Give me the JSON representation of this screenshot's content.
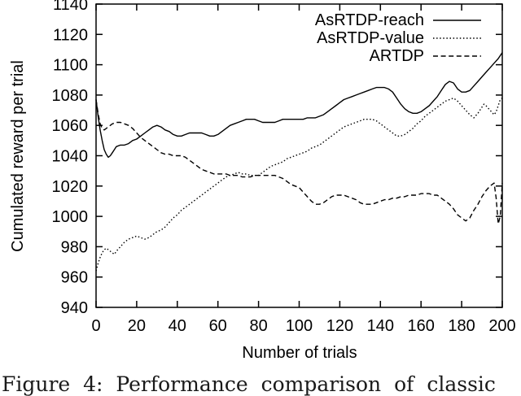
{
  "figure": {
    "caption_partial": "Figure 4: Performance comparison of classic"
  },
  "chart_data": {
    "type": "line",
    "title": "",
    "xlabel": "Number of trials",
    "ylabel": "Cumulated reward per trial",
    "xlim": [
      0,
      200
    ],
    "ylim": [
      940,
      1140
    ],
    "x_ticks": [
      0,
      20,
      40,
      60,
      80,
      100,
      120,
      140,
      160,
      180,
      200
    ],
    "y_ticks": [
      940,
      960,
      980,
      1000,
      1020,
      1040,
      1060,
      1080,
      1100,
      1120,
      1140
    ],
    "grid": false,
    "legend_position": "top-right-inside",
    "line_color": "#000000",
    "series": [
      {
        "name": "AsRTDP-reach",
        "style": "solid",
        "color": "#000000",
        "points": [
          [
            0,
            1077
          ],
          [
            1,
            1066
          ],
          [
            2,
            1057
          ],
          [
            3,
            1050
          ],
          [
            4,
            1044
          ],
          [
            5,
            1041
          ],
          [
            6,
            1039
          ],
          [
            7,
            1040
          ],
          [
            8,
            1042
          ],
          [
            9,
            1044
          ],
          [
            10,
            1046
          ],
          [
            12,
            1047
          ],
          [
            14,
            1047
          ],
          [
            16,
            1048
          ],
          [
            18,
            1050
          ],
          [
            20,
            1051
          ],
          [
            22,
            1053
          ],
          [
            24,
            1055
          ],
          [
            26,
            1057
          ],
          [
            28,
            1059
          ],
          [
            30,
            1060
          ],
          [
            32,
            1059
          ],
          [
            34,
            1057
          ],
          [
            36,
            1056
          ],
          [
            38,
            1054
          ],
          [
            40,
            1053
          ],
          [
            42,
            1053
          ],
          [
            44,
            1054
          ],
          [
            46,
            1055
          ],
          [
            48,
            1055
          ],
          [
            50,
            1055
          ],
          [
            52,
            1055
          ],
          [
            54,
            1054
          ],
          [
            56,
            1053
          ],
          [
            58,
            1053
          ],
          [
            60,
            1054
          ],
          [
            62,
            1056
          ],
          [
            64,
            1058
          ],
          [
            66,
            1060
          ],
          [
            68,
            1061
          ],
          [
            70,
            1062
          ],
          [
            72,
            1063
          ],
          [
            74,
            1064
          ],
          [
            76,
            1064
          ],
          [
            78,
            1064
          ],
          [
            80,
            1063
          ],
          [
            82,
            1062
          ],
          [
            84,
            1062
          ],
          [
            86,
            1062
          ],
          [
            88,
            1062
          ],
          [
            90,
            1063
          ],
          [
            92,
            1064
          ],
          [
            94,
            1064
          ],
          [
            96,
            1064
          ],
          [
            98,
            1064
          ],
          [
            100,
            1064
          ],
          [
            102,
            1064
          ],
          [
            104,
            1065
          ],
          [
            106,
            1065
          ],
          [
            108,
            1065
          ],
          [
            110,
            1066
          ],
          [
            112,
            1067
          ],
          [
            114,
            1069
          ],
          [
            116,
            1071
          ],
          [
            118,
            1073
          ],
          [
            120,
            1075
          ],
          [
            122,
            1077
          ],
          [
            124,
            1078
          ],
          [
            126,
            1079
          ],
          [
            128,
            1080
          ],
          [
            130,
            1081
          ],
          [
            132,
            1082
          ],
          [
            134,
            1083
          ],
          [
            136,
            1084
          ],
          [
            138,
            1085
          ],
          [
            140,
            1085
          ],
          [
            142,
            1085
          ],
          [
            144,
            1084
          ],
          [
            146,
            1082
          ],
          [
            148,
            1078
          ],
          [
            150,
            1074
          ],
          [
            152,
            1071
          ],
          [
            154,
            1069
          ],
          [
            156,
            1068
          ],
          [
            158,
            1068
          ],
          [
            160,
            1069
          ],
          [
            162,
            1071
          ],
          [
            164,
            1073
          ],
          [
            166,
            1076
          ],
          [
            168,
            1079
          ],
          [
            170,
            1083
          ],
          [
            172,
            1087
          ],
          [
            174,
            1089
          ],
          [
            176,
            1088
          ],
          [
            178,
            1084
          ],
          [
            180,
            1082
          ],
          [
            182,
            1082
          ],
          [
            184,
            1083
          ],
          [
            186,
            1086
          ],
          [
            188,
            1089
          ],
          [
            190,
            1092
          ],
          [
            192,
            1095
          ],
          [
            194,
            1098
          ],
          [
            196,
            1101
          ],
          [
            198,
            1104
          ],
          [
            200,
            1108
          ]
        ]
      },
      {
        "name": "AsRTDP-value",
        "style": "dotted",
        "color": "#000000",
        "points": [
          [
            0,
            964
          ],
          [
            1,
            969
          ],
          [
            2,
            973
          ],
          [
            3,
            976
          ],
          [
            4,
            978
          ],
          [
            5,
            979
          ],
          [
            6,
            978
          ],
          [
            7,
            977
          ],
          [
            8,
            976
          ],
          [
            9,
            975
          ],
          [
            10,
            977
          ],
          [
            12,
            980
          ],
          [
            14,
            983
          ],
          [
            16,
            985
          ],
          [
            18,
            986
          ],
          [
            20,
            987
          ],
          [
            22,
            986
          ],
          [
            24,
            985
          ],
          [
            26,
            986
          ],
          [
            28,
            988
          ],
          [
            30,
            990
          ],
          [
            32,
            991
          ],
          [
            34,
            993
          ],
          [
            36,
            996
          ],
          [
            38,
            999
          ],
          [
            40,
            1001
          ],
          [
            42,
            1004
          ],
          [
            44,
            1006
          ],
          [
            46,
            1008
          ],
          [
            48,
            1010
          ],
          [
            50,
            1012
          ],
          [
            52,
            1014
          ],
          [
            54,
            1016
          ],
          [
            56,
            1018
          ],
          [
            58,
            1020
          ],
          [
            60,
            1022
          ],
          [
            62,
            1024
          ],
          [
            64,
            1026
          ],
          [
            66,
            1027
          ],
          [
            68,
            1028
          ],
          [
            70,
            1029
          ],
          [
            72,
            1028
          ],
          [
            74,
            1028
          ],
          [
            76,
            1027
          ],
          [
            78,
            1027
          ],
          [
            80,
            1027
          ],
          [
            82,
            1029
          ],
          [
            84,
            1031
          ],
          [
            86,
            1033
          ],
          [
            88,
            1034
          ],
          [
            90,
            1035
          ],
          [
            92,
            1036
          ],
          [
            94,
            1038
          ],
          [
            96,
            1039
          ],
          [
            98,
            1040
          ],
          [
            100,
            1041
          ],
          [
            102,
            1042
          ],
          [
            104,
            1043
          ],
          [
            106,
            1045
          ],
          [
            108,
            1046
          ],
          [
            110,
            1047
          ],
          [
            112,
            1049
          ],
          [
            114,
            1051
          ],
          [
            116,
            1053
          ],
          [
            118,
            1055
          ],
          [
            120,
            1057
          ],
          [
            122,
            1059
          ],
          [
            124,
            1060
          ],
          [
            126,
            1061
          ],
          [
            128,
            1062
          ],
          [
            130,
            1063
          ],
          [
            132,
            1064
          ],
          [
            134,
            1064
          ],
          [
            136,
            1064
          ],
          [
            138,
            1063
          ],
          [
            140,
            1061
          ],
          [
            142,
            1059
          ],
          [
            144,
            1057
          ],
          [
            146,
            1055
          ],
          [
            148,
            1053
          ],
          [
            150,
            1053
          ],
          [
            152,
            1054
          ],
          [
            154,
            1056
          ],
          [
            156,
            1058
          ],
          [
            158,
            1061
          ],
          [
            160,
            1063
          ],
          [
            162,
            1066
          ],
          [
            164,
            1068
          ],
          [
            166,
            1070
          ],
          [
            168,
            1072
          ],
          [
            170,
            1074
          ],
          [
            172,
            1076
          ],
          [
            174,
            1077
          ],
          [
            176,
            1078
          ],
          [
            178,
            1076
          ],
          [
            180,
            1073
          ],
          [
            182,
            1070
          ],
          [
            184,
            1067
          ],
          [
            186,
            1065
          ],
          [
            188,
            1068
          ],
          [
            190,
            1072
          ],
          [
            191,
            1074
          ],
          [
            192,
            1073
          ],
          [
            194,
            1070
          ],
          [
            196,
            1067
          ],
          [
            197,
            1069
          ],
          [
            198,
            1073
          ],
          [
            199,
            1077
          ],
          [
            200,
            1078
          ]
        ]
      },
      {
        "name": "ARTDP",
        "style": "dashed",
        "color": "#000000",
        "points": [
          [
            0,
            1077
          ],
          [
            1,
            1068
          ],
          [
            2,
            1061
          ],
          [
            3,
            1058
          ],
          [
            4,
            1057
          ],
          [
            5,
            1058
          ],
          [
            6,
            1059
          ],
          [
            7,
            1060
          ],
          [
            8,
            1061
          ],
          [
            10,
            1062
          ],
          [
            12,
            1062
          ],
          [
            14,
            1061
          ],
          [
            16,
            1060
          ],
          [
            18,
            1058
          ],
          [
            20,
            1055
          ],
          [
            22,
            1052
          ],
          [
            24,
            1050
          ],
          [
            26,
            1048
          ],
          [
            28,
            1046
          ],
          [
            30,
            1044
          ],
          [
            32,
            1042
          ],
          [
            34,
            1041
          ],
          [
            36,
            1041
          ],
          [
            38,
            1040
          ],
          [
            40,
            1040
          ],
          [
            42,
            1040
          ],
          [
            44,
            1039
          ],
          [
            46,
            1037
          ],
          [
            48,
            1035
          ],
          [
            50,
            1033
          ],
          [
            52,
            1031
          ],
          [
            54,
            1030
          ],
          [
            56,
            1029
          ],
          [
            58,
            1028
          ],
          [
            60,
            1028
          ],
          [
            62,
            1028
          ],
          [
            64,
            1028
          ],
          [
            66,
            1027
          ],
          [
            68,
            1027
          ],
          [
            70,
            1027
          ],
          [
            72,
            1026
          ],
          [
            74,
            1026
          ],
          [
            76,
            1026
          ],
          [
            78,
            1027
          ],
          [
            80,
            1027
          ],
          [
            82,
            1027
          ],
          [
            84,
            1027
          ],
          [
            86,
            1027
          ],
          [
            88,
            1027
          ],
          [
            90,
            1026
          ],
          [
            92,
            1025
          ],
          [
            94,
            1023
          ],
          [
            96,
            1021
          ],
          [
            98,
            1020
          ],
          [
            100,
            1019
          ],
          [
            102,
            1016
          ],
          [
            104,
            1013
          ],
          [
            106,
            1010
          ],
          [
            108,
            1008
          ],
          [
            110,
            1008
          ],
          [
            112,
            1009
          ],
          [
            114,
            1011
          ],
          [
            116,
            1013
          ],
          [
            118,
            1014
          ],
          [
            120,
            1014
          ],
          [
            122,
            1014
          ],
          [
            124,
            1013
          ],
          [
            126,
            1012
          ],
          [
            128,
            1011
          ],
          [
            130,
            1009
          ],
          [
            132,
            1008
          ],
          [
            134,
            1008
          ],
          [
            136,
            1008
          ],
          [
            138,
            1009
          ],
          [
            140,
            1010
          ],
          [
            142,
            1011
          ],
          [
            144,
            1011
          ],
          [
            146,
            1012
          ],
          [
            148,
            1012
          ],
          [
            150,
            1013
          ],
          [
            152,
            1013
          ],
          [
            154,
            1014
          ],
          [
            156,
            1014
          ],
          [
            158,
            1014
          ],
          [
            160,
            1015
          ],
          [
            162,
            1015
          ],
          [
            164,
            1015
          ],
          [
            166,
            1014
          ],
          [
            168,
            1014
          ],
          [
            170,
            1012
          ],
          [
            172,
            1010
          ],
          [
            174,
            1008
          ],
          [
            176,
            1005
          ],
          [
            178,
            1001
          ],
          [
            180,
            999
          ],
          [
            182,
            997
          ],
          [
            184,
            999
          ],
          [
            186,
            1004
          ],
          [
            188,
            1008
          ],
          [
            190,
            1013
          ],
          [
            192,
            1017
          ],
          [
            194,
            1020
          ],
          [
            195,
            1021
          ],
          [
            196,
            1022
          ],
          [
            197,
            1012
          ],
          [
            198,
            995
          ],
          [
            199,
            1000
          ],
          [
            200,
            1022
          ]
        ]
      }
    ]
  }
}
